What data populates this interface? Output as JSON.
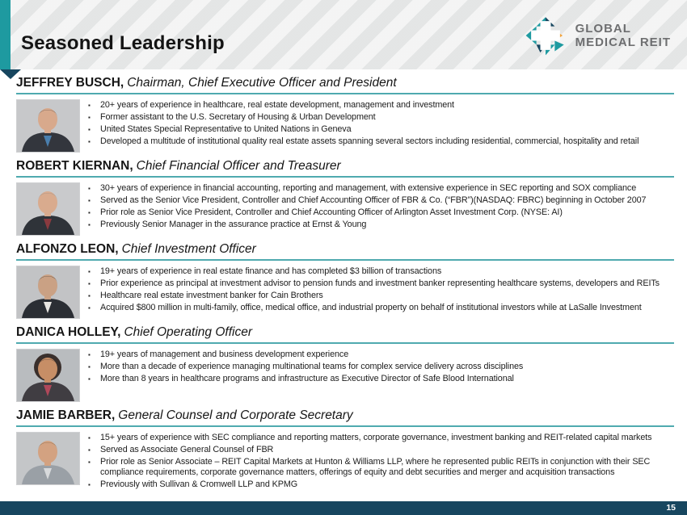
{
  "slide": {
    "title": "Seasoned Leadership",
    "page_number": "15",
    "logo": {
      "line1": "GLOBAL",
      "line2": "MEDICAL REIT"
    },
    "colors": {
      "teal": "#1E9AA0",
      "navy": "#17465F",
      "divider": "#4FAAAF",
      "orange": "#F2A33C"
    }
  },
  "executives": [
    {
      "name": "JEFFREY BUSCH,",
      "title": "Chairman, Chief Executive Officer and President",
      "photo": {
        "bg": "#c7c8ca",
        "hair": "#4a4038",
        "skin": "#d8a98c",
        "suit": "#33363d",
        "accent": "#4a7fae",
        "full_hair": false
      },
      "bullets": [
        "20+ years of experience in healthcare, real estate development, management and investment",
        "Former assistant to the U.S. Secretary of Housing & Urban Development",
        "United States Special Representative to United Nations in Geneva",
        "Developed a multitude of institutional quality real estate assets spanning several sectors including residential, commercial, hospitality and retail"
      ]
    },
    {
      "name": "ROBERT KIERNAN,",
      "title": "Chief Financial Officer and Treasurer",
      "photo": {
        "bg": "#c9cacc",
        "hair": "#8a8a88",
        "skin": "#d9ab8e",
        "suit": "#2f3339",
        "accent": "#8a3a3f",
        "full_hair": false
      },
      "bullets": [
        "30+ years of experience in financial accounting, reporting and management,  with extensive experience in SEC reporting and SOX compliance",
        "Served as the Senior Vice President, Controller and Chief Accounting Officer of FBR & Co. (“FBR”)(NASDAQ:  FBRC) beginning in October 2007",
        "Prior role as Senior Vice President, Controller and Chief Accounting Officer of Arlington Asset Investment Corp. (NYSE: AI)",
        "Previously Senior Manager in the assurance practice at Ernst & Young"
      ]
    },
    {
      "name": "ALFONZO LEON,",
      "title": "Chief Investment Officer",
      "photo": {
        "bg": "#c2c3c5",
        "hair": "#2e2a28",
        "skin": "#caa184",
        "suit": "#2b2e34",
        "accent": "#e8e6e2",
        "full_hair": false
      },
      "bullets": [
        "19+ years of experience in real estate finance and has completed $3 billion of transactions",
        "Prior experience as principal at investment advisor to pension funds and investment banker representing healthcare systems, developers and REITs",
        "Healthcare real estate investment banker for Cain Brothers",
        "Acquired $800 million in multi-family, office, medical office, and industrial property on behalf of institutional investors while at LaSalle Investment"
      ]
    },
    {
      "name": "DANICA HOLLEY,",
      "title": "Chief Operating Officer",
      "photo": {
        "bg": "#b9bcbf",
        "hair": "#3a2f2c",
        "skin": "#c78e66",
        "suit": "#403d42",
        "accent": "#b0485a",
        "full_hair": true
      },
      "bullets": [
        "19+ years of management and business development experience",
        "More than a decade of experience managing multinational teams for complex service delivery across disciplines",
        "More than 8 years in healthcare programs and infrastructure as Executive Director of Safe Blood International"
      ]
    },
    {
      "name": "JAMIE BARBER,",
      "title": "General Counsel and Corporate Secretary",
      "photo": {
        "bg": "#c4c6c8",
        "hair": "#6b5639",
        "skin": "#d3a281",
        "suit": "#9aa0a6",
        "accent": "#d8dadc",
        "full_hair": false
      },
      "bullets": [
        "15+ years of experience with SEC compliance and reporting matters, corporate governance, investment banking and REIT-related capital markets",
        "Served as Associate General Counsel of FBR",
        "Prior role as Senior Associate – REIT Capital Markets at Hunton & Williams LLP, where he represented public REITs in conjunction with their SEC compliance requirements, corporate governance matters, offerings of equity and debt securities and merger and acquisition transactions",
        "Previously with Sullivan & Cromwell LLP and KPMG"
      ]
    }
  ]
}
